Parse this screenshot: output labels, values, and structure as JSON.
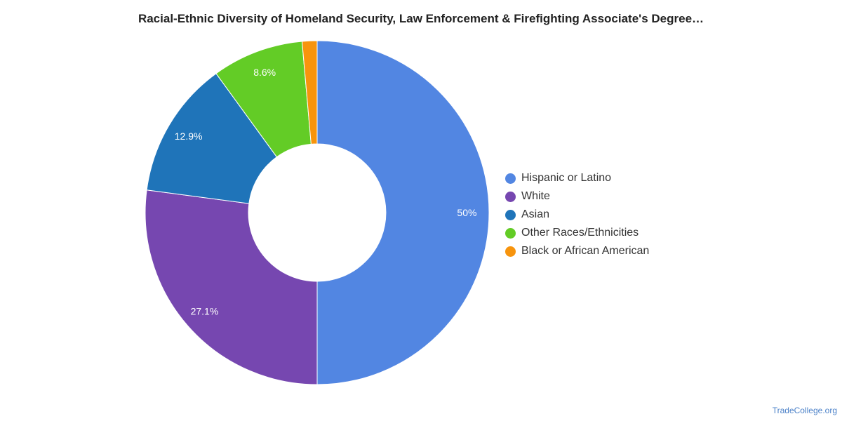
{
  "chart_data": {
    "type": "pie",
    "variant": "donut",
    "title": "Racial-Ethnic Diversity of Homeland Security, Law Enforcement & Firefighting Associate's Degree…",
    "slices": [
      {
        "name": "Hispanic or Latino",
        "value": 50.0,
        "label": "50%",
        "color": "#5286e2"
      },
      {
        "name": "White",
        "value": 27.1,
        "label": "27.1%",
        "color": "#7647b0"
      },
      {
        "name": "Asian",
        "value": 12.9,
        "label": "12.9%",
        "color": "#1f74b9"
      },
      {
        "name": "Other Races/Ethnicities",
        "value": 8.6,
        "label": "8.6%",
        "color": "#63cc26"
      },
      {
        "name": "Black or African American",
        "value": 1.4,
        "label": "",
        "color": "#f7940d"
      }
    ],
    "legend_position": "right"
  },
  "source": {
    "text": "TradeCollege.org"
  }
}
